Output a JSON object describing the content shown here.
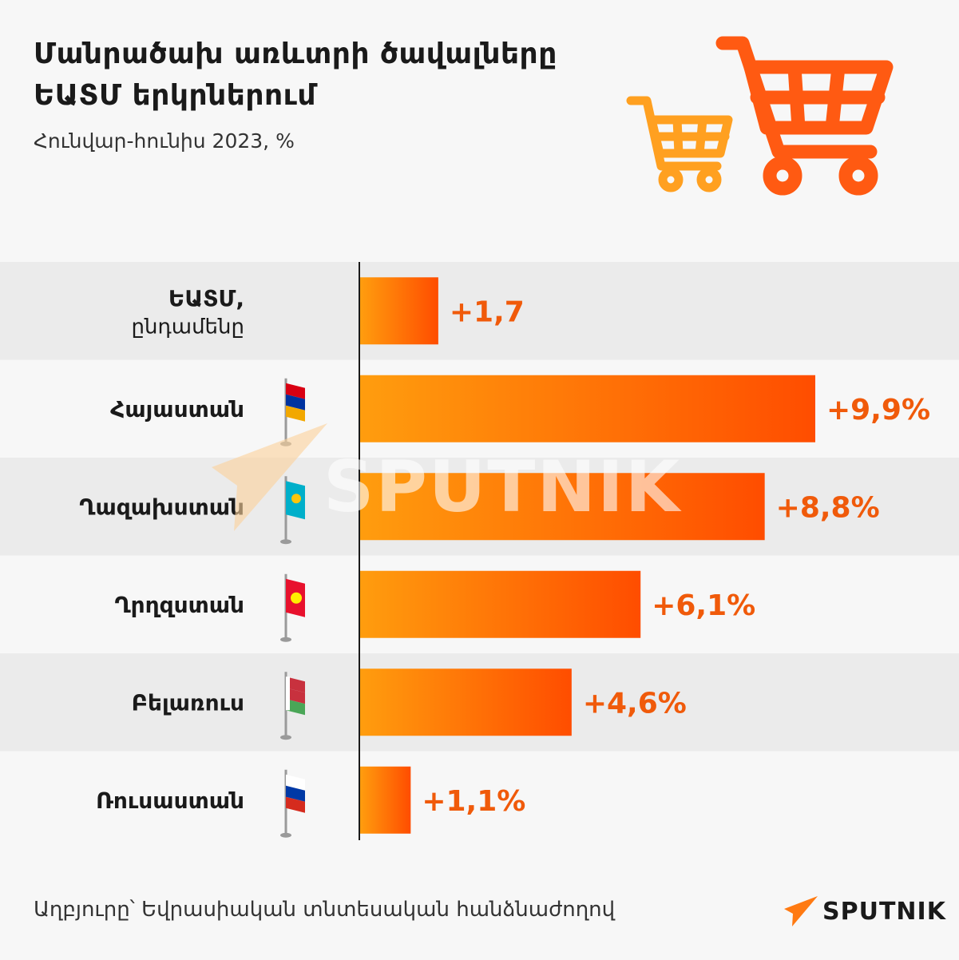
{
  "title_line1": "Մանրածախ առևտրի ծավալները",
  "title_line2": "ԵԱՏՄ երկրներում",
  "subtitle": "Հունվար-հունիս 2023, %",
  "source": "Աղբյուրը՝ Եվրասիական տնտեսական հանձնաժողով",
  "logo_text": "SPUTNIK",
  "watermark_text": "SPUTNIK",
  "colors": {
    "bar_start": "#ff9d0e",
    "bar_end": "#ff4d00",
    "value_text": "#f05a0a",
    "row_dark": "#ebebeb",
    "row_light": "#f7f7f7",
    "cart_big": "#ff5a12",
    "cart_small": "#ffa020"
  },
  "chart_data": {
    "type": "bar",
    "orientation": "horizontal",
    "categories": [
      {
        "line1": "ԵԱՏՄ,",
        "line2": "ընդամենը",
        "flag": ""
      },
      {
        "line1": "Հայաստան",
        "line2": "",
        "flag": "armenia-flag"
      },
      {
        "line1": "Ղազախստան",
        "line2": "",
        "flag": "kazakhstan-flag"
      },
      {
        "line1": "Ղրղզստան",
        "line2": "",
        "flag": "kyrgyzstan-flag"
      },
      {
        "line1": "Բելառուս",
        "line2": "",
        "flag": "belarus-flag"
      },
      {
        "line1": "Ռուսաստան",
        "line2": "",
        "flag": "russia-flag"
      }
    ],
    "values": [
      1.7,
      9.9,
      8.8,
      6.1,
      4.6,
      1.1
    ],
    "labels": [
      "+1,7",
      "+9,9%",
      "+8,8%",
      "+6,1%",
      "+4,6%",
      "+1,1%"
    ],
    "xlim": [
      0,
      9.9
    ]
  }
}
